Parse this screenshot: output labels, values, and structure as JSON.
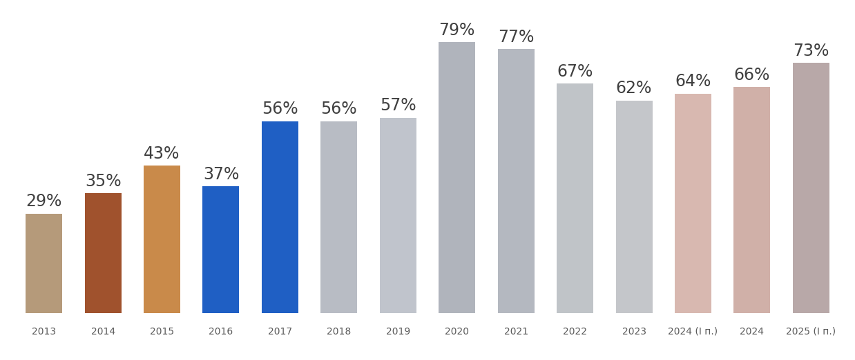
{
  "chart_data": {
    "type": "bar",
    "categories": [
      "2013",
      "2014",
      "2015",
      "2016",
      "2017",
      "2018",
      "2019",
      "2020",
      "2021",
      "2022",
      "2023",
      "2024 (I п.)",
      "2024",
      "2025 (I п.)"
    ],
    "values": [
      29,
      35,
      43,
      37,
      56,
      56,
      57,
      79,
      77,
      67,
      62,
      64,
      66,
      73
    ],
    "value_labels": [
      "29%",
      "35%",
      "43%",
      "37%",
      "56%",
      "56%",
      "57%",
      "79%",
      "77%",
      "67%",
      "62%",
      "64%",
      "66%",
      "73%"
    ],
    "colors": [
      "#b59a7a",
      "#a0522d",
      "#c98a4a",
      "#1f5fc4",
      "#1f5fc4",
      "#b8bcc4",
      "#c0c4cc",
      "#b0b4bc",
      "#b4b8c0",
      "#c0c4c8",
      "#c4c6ca",
      "#d8b8b0",
      "#d0b0a8",
      "#b8a8a8"
    ],
    "data_labels": true,
    "tick_labels": "x",
    "grid": false
  }
}
